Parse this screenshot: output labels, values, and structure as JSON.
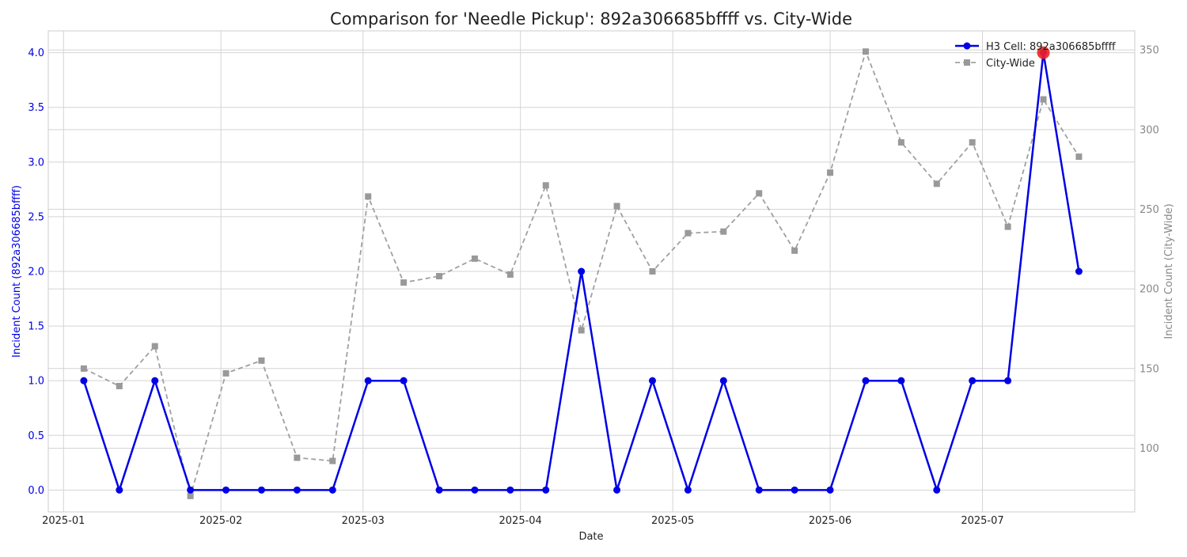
{
  "chart_data": {
    "type": "line",
    "title": "Comparison for 'Needle Pickup': 892a306685bffff vs. City-Wide",
    "xlabel": "Date",
    "ylabel_left": "Incident Count (892a306685bffff)",
    "ylabel_right": "Incident Count (City-Wide)",
    "ylim_left": [
      -0.2,
      4.2
    ],
    "ylim_right": [
      60,
      362
    ],
    "xlim": [
      "2024-12-29",
      "2025-07-31"
    ],
    "x_tick_labels": [
      "2025-01",
      "2025-02",
      "2025-03",
      "2025-04",
      "2025-05",
      "2025-06",
      "2025-07"
    ],
    "y_left_tick_labels": [
      "0.0",
      "0.5",
      "1.0",
      "1.5",
      "2.0",
      "2.5",
      "3.0",
      "3.5",
      "4.0"
    ],
    "y_right_tick_labels": [
      "100",
      "150",
      "200",
      "250",
      "300",
      "350"
    ],
    "grid": true,
    "legend_position": "top-right",
    "colors": {
      "cell": "#0000e6",
      "city": "#a0a0a0",
      "highlight": "#ee2222"
    },
    "x": [
      "2025-01-05",
      "2025-01-12",
      "2025-01-19",
      "2025-01-26",
      "2025-02-02",
      "2025-02-09",
      "2025-02-16",
      "2025-02-23",
      "2025-03-02",
      "2025-03-09",
      "2025-03-16",
      "2025-03-23",
      "2025-03-30",
      "2025-04-06",
      "2025-04-13",
      "2025-04-20",
      "2025-04-27",
      "2025-05-04",
      "2025-05-11",
      "2025-05-18",
      "2025-05-25",
      "2025-06-01",
      "2025-06-08",
      "2025-06-15",
      "2025-06-22",
      "2025-06-29",
      "2025-07-06",
      "2025-07-13",
      "2025-07-20"
    ],
    "series": [
      {
        "name": "H3 Cell: 892a306685bffff",
        "axis": "left",
        "values": [
          1,
          0,
          1,
          0,
          0,
          0,
          0,
          0,
          1,
          1,
          0,
          0,
          0,
          0,
          2,
          0,
          1,
          0,
          1,
          0,
          0,
          0,
          1,
          1,
          0,
          1,
          1,
          4,
          2
        ]
      },
      {
        "name": "City-Wide",
        "axis": "right",
        "values": [
          150,
          139,
          164,
          70,
          147,
          155,
          94,
          92,
          258,
          204,
          208,
          219,
          209,
          265,
          174,
          252,
          211,
          235,
          236,
          260,
          224,
          273,
          349,
          292,
          266,
          292,
          239,
          319,
          283
        ]
      }
    ],
    "highlight_point": {
      "x": "2025-07-13",
      "value": 4
    }
  }
}
